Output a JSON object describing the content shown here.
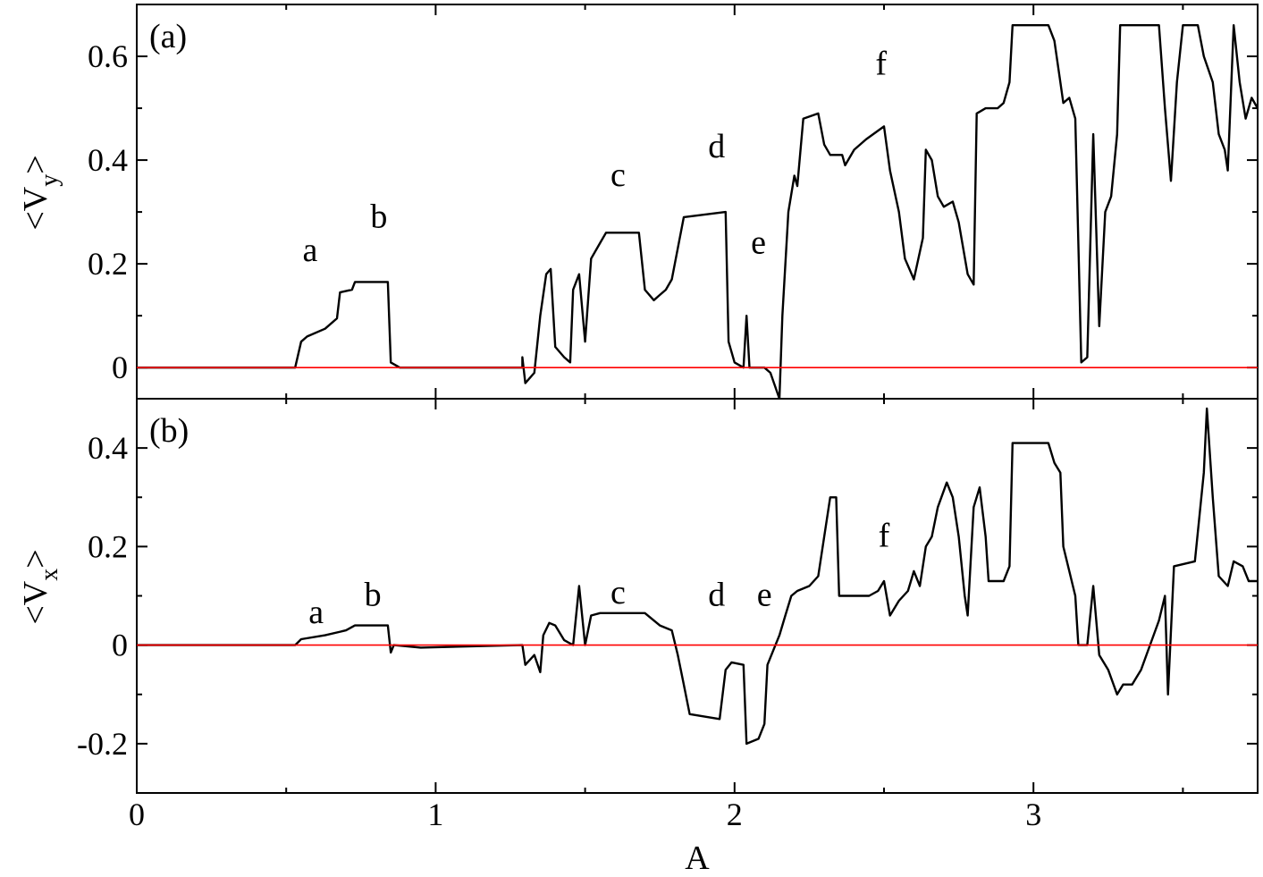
{
  "figure": {
    "xlabel": "A",
    "colors": {
      "primary_series": "#000000",
      "secondary_series": "#ff0000",
      "frame": "#000000"
    }
  },
  "chart_data": [
    {
      "type": "line",
      "panel_label": "(a)",
      "ylabel_main": "<V",
      "ylabel_sub": "y",
      "ylabel_close": ">",
      "xlabel": "",
      "xlim": [
        0,
        3.75
      ],
      "ylim": [
        -0.06,
        0.7
      ],
      "x_ticks": [
        0,
        1,
        2,
        3
      ],
      "x_tick_labels": [
        "",
        "",
        "",
        ""
      ],
      "y_ticks": [
        0,
        0.2,
        0.4,
        0.6
      ],
      "y_tick_labels": [
        "0",
        "0.2",
        "0.4",
        "0.6"
      ],
      "grid": false,
      "annotations": [
        {
          "text": "a",
          "x": 0.58,
          "y": 0.205
        },
        {
          "text": "b",
          "x": 0.81,
          "y": 0.27
        },
        {
          "text": "c",
          "x": 1.61,
          "y": 0.35
        },
        {
          "text": "d",
          "x": 1.94,
          "y": 0.405
        },
        {
          "text": "e",
          "x": 2.08,
          "y": 0.22
        },
        {
          "text": "f",
          "x": 2.49,
          "y": 0.565
        }
      ],
      "series": [
        {
          "color": "#000000",
          "points": [
            [
              0,
              0
            ],
            [
              0.53,
              0
            ],
            [
              0.55,
              0.05
            ],
            [
              0.57,
              0.06
            ],
            [
              0.63,
              0.075
            ],
            [
              0.67,
              0.095
            ],
            [
              0.68,
              0.145
            ],
            [
              0.72,
              0.15
            ],
            [
              0.73,
              0.165
            ],
            [
              0.84,
              0.165
            ],
            [
              0.85,
              0.01
            ],
            [
              0.88,
              0
            ],
            [
              1.29,
              0
            ],
            [
              1.29,
              0.02
            ],
            [
              1.3,
              -0.03
            ],
            [
              1.33,
              -0.01
            ],
            [
              1.35,
              0.1
            ],
            [
              1.37,
              0.18
            ],
            [
              1.385,
              0.19
            ],
            [
              1.4,
              0.04
            ],
            [
              1.43,
              0.02
            ],
            [
              1.45,
              0.01
            ],
            [
              1.46,
              0.15
            ],
            [
              1.48,
              0.18
            ],
            [
              1.5,
              0.05
            ],
            [
              1.52,
              0.21
            ],
            [
              1.55,
              0.24
            ],
            [
              1.57,
              0.26
            ],
            [
              1.68,
              0.26
            ],
            [
              1.7,
              0.15
            ],
            [
              1.73,
              0.13
            ],
            [
              1.75,
              0.14
            ],
            [
              1.77,
              0.15
            ],
            [
              1.79,
              0.17
            ],
            [
              1.81,
              0.23
            ],
            [
              1.83,
              0.29
            ],
            [
              1.97,
              0.3
            ],
            [
              1.98,
              0.05
            ],
            [
              2.0,
              0.01
            ],
            [
              2.03,
              0.0
            ],
            [
              2.04,
              0.1
            ],
            [
              2.05,
              0.0
            ],
            [
              2.1,
              0.0
            ],
            [
              2.12,
              -0.01
            ],
            [
              2.15,
              -0.06
            ],
            [
              2.16,
              0.1
            ],
            [
              2.18,
              0.3
            ],
            [
              2.2,
              0.37
            ],
            [
              2.21,
              0.35
            ],
            [
              2.23,
              0.48
            ],
            [
              2.28,
              0.49
            ],
            [
              2.3,
              0.43
            ],
            [
              2.32,
              0.41
            ],
            [
              2.36,
              0.41
            ],
            [
              2.37,
              0.39
            ],
            [
              2.4,
              0.42
            ],
            [
              2.44,
              0.44
            ],
            [
              2.5,
              0.465
            ],
            [
              2.52,
              0.38
            ],
            [
              2.55,
              0.3
            ],
            [
              2.57,
              0.21
            ],
            [
              2.6,
              0.17
            ],
            [
              2.63,
              0.25
            ],
            [
              2.64,
              0.42
            ],
            [
              2.66,
              0.4
            ],
            [
              2.68,
              0.33
            ],
            [
              2.7,
              0.31
            ],
            [
              2.73,
              0.32
            ],
            [
              2.75,
              0.28
            ],
            [
              2.78,
              0.18
            ],
            [
              2.8,
              0.16
            ],
            [
              2.81,
              0.49
            ],
            [
              2.84,
              0.5
            ],
            [
              2.88,
              0.5
            ],
            [
              2.9,
              0.51
            ],
            [
              2.92,
              0.55
            ],
            [
              2.93,
              0.66
            ],
            [
              3.05,
              0.66
            ],
            [
              3.07,
              0.63
            ],
            [
              3.09,
              0.55
            ],
            [
              3.1,
              0.51
            ],
            [
              3.12,
              0.52
            ],
            [
              3.14,
              0.48
            ],
            [
              3.16,
              0.01
            ],
            [
              3.18,
              0.02
            ],
            [
              3.2,
              0.45
            ],
            [
              3.22,
              0.08
            ],
            [
              3.24,
              0.3
            ],
            [
              3.26,
              0.33
            ],
            [
              3.28,
              0.45
            ],
            [
              3.29,
              0.66
            ],
            [
              3.42,
              0.66
            ],
            [
              3.44,
              0.5
            ],
            [
              3.46,
              0.36
            ],
            [
              3.48,
              0.55
            ],
            [
              3.5,
              0.66
            ],
            [
              3.55,
              0.66
            ],
            [
              3.57,
              0.6
            ],
            [
              3.6,
              0.55
            ],
            [
              3.62,
              0.45
            ],
            [
              3.64,
              0.42
            ],
            [
              3.65,
              0.38
            ],
            [
              3.67,
              0.66
            ],
            [
              3.69,
              0.55
            ],
            [
              3.71,
              0.48
            ],
            [
              3.73,
              0.52
            ],
            [
              3.75,
              0.5
            ]
          ]
        },
        {
          "color": "#ff0000",
          "points": [
            [
              0,
              0
            ],
            [
              3.75,
              0
            ]
          ]
        }
      ]
    },
    {
      "type": "line",
      "panel_label": "(b)",
      "ylabel_main": "<V",
      "ylabel_sub": "x",
      "ylabel_close": ">",
      "xlabel": "A",
      "xlim": [
        0,
        3.75
      ],
      "ylim": [
        -0.3,
        0.5
      ],
      "x_ticks": [
        0,
        1,
        2,
        3
      ],
      "x_tick_labels": [
        "0",
        "1",
        "2",
        "3"
      ],
      "y_ticks": [
        -0.2,
        0,
        0.2,
        0.4
      ],
      "y_tick_labels": [
        "-0.2",
        "0",
        "0.2",
        "0.4"
      ],
      "grid": false,
      "annotations": [
        {
          "text": "a",
          "x": 0.6,
          "y": 0.045
        },
        {
          "text": "b",
          "x": 0.79,
          "y": 0.08
        },
        {
          "text": "c",
          "x": 1.61,
          "y": 0.085
        },
        {
          "text": "d",
          "x": 1.94,
          "y": 0.08
        },
        {
          "text": "e",
          "x": 2.1,
          "y": 0.08
        },
        {
          "text": "f",
          "x": 2.5,
          "y": 0.2
        }
      ],
      "series": [
        {
          "color": "#000000",
          "points": [
            [
              0,
              0
            ],
            [
              0.53,
              0
            ],
            [
              0.55,
              0.012
            ],
            [
              0.63,
              0.02
            ],
            [
              0.7,
              0.03
            ],
            [
              0.73,
              0.04
            ],
            [
              0.84,
              0.04
            ],
            [
              0.85,
              -0.015
            ],
            [
              0.86,
              0.0
            ],
            [
              0.95,
              -0.005
            ],
            [
              1.29,
              0
            ],
            [
              1.3,
              -0.04
            ],
            [
              1.33,
              -0.02
            ],
            [
              1.35,
              -0.055
            ],
            [
              1.36,
              0.02
            ],
            [
              1.38,
              0.045
            ],
            [
              1.4,
              0.04
            ],
            [
              1.43,
              0.01
            ],
            [
              1.46,
              0.0
            ],
            [
              1.48,
              0.12
            ],
            [
              1.5,
              0.0
            ],
            [
              1.52,
              0.06
            ],
            [
              1.55,
              0.065
            ],
            [
              1.7,
              0.065
            ],
            [
              1.73,
              0.05
            ],
            [
              1.75,
              0.04
            ],
            [
              1.79,
              0.03
            ],
            [
              1.81,
              -0.02
            ],
            [
              1.83,
              -0.08
            ],
            [
              1.85,
              -0.14
            ],
            [
              1.95,
              -0.15
            ],
            [
              1.97,
              -0.05
            ],
            [
              1.99,
              -0.035
            ],
            [
              2.03,
              -0.04
            ],
            [
              2.04,
              -0.2
            ],
            [
              2.08,
              -0.19
            ],
            [
              2.1,
              -0.16
            ],
            [
              2.11,
              -0.04
            ],
            [
              2.13,
              -0.01
            ],
            [
              2.15,
              0.02
            ],
            [
              2.17,
              0.06
            ],
            [
              2.19,
              0.1
            ],
            [
              2.21,
              0.11
            ],
            [
              2.25,
              0.12
            ],
            [
              2.28,
              0.14
            ],
            [
              2.3,
              0.22
            ],
            [
              2.32,
              0.3
            ],
            [
              2.34,
              0.3
            ],
            [
              2.35,
              0.1
            ],
            [
              2.4,
              0.1
            ],
            [
              2.45,
              0.1
            ],
            [
              2.48,
              0.11
            ],
            [
              2.5,
              0.13
            ],
            [
              2.52,
              0.06
            ],
            [
              2.55,
              0.09
            ],
            [
              2.58,
              0.11
            ],
            [
              2.6,
              0.15
            ],
            [
              2.62,
              0.12
            ],
            [
              2.64,
              0.2
            ],
            [
              2.66,
              0.22
            ],
            [
              2.68,
              0.28
            ],
            [
              2.71,
              0.33
            ],
            [
              2.73,
              0.3
            ],
            [
              2.75,
              0.22
            ],
            [
              2.77,
              0.1
            ],
            [
              2.78,
              0.06
            ],
            [
              2.8,
              0.28
            ],
            [
              2.82,
              0.32
            ],
            [
              2.84,
              0.22
            ],
            [
              2.85,
              0.13
            ],
            [
              2.9,
              0.13
            ],
            [
              2.92,
              0.16
            ],
            [
              2.93,
              0.41
            ],
            [
              3.05,
              0.41
            ],
            [
              3.07,
              0.37
            ],
            [
              3.09,
              0.35
            ],
            [
              3.1,
              0.2
            ],
            [
              3.12,
              0.15
            ],
            [
              3.14,
              0.1
            ],
            [
              3.15,
              0.0
            ],
            [
              3.18,
              0.0
            ],
            [
              3.2,
              0.12
            ],
            [
              3.22,
              -0.02
            ],
            [
              3.25,
              -0.05
            ],
            [
              3.28,
              -0.1
            ],
            [
              3.3,
              -0.08
            ],
            [
              3.33,
              -0.08
            ],
            [
              3.36,
              -0.05
            ],
            [
              3.39,
              0.0
            ],
            [
              3.42,
              0.05
            ],
            [
              3.44,
              0.1
            ],
            [
              3.45,
              -0.1
            ],
            [
              3.47,
              0.16
            ],
            [
              3.54,
              0.17
            ],
            [
              3.57,
              0.35
            ],
            [
              3.58,
              0.48
            ],
            [
              3.6,
              0.3
            ],
            [
              3.62,
              0.14
            ],
            [
              3.65,
              0.12
            ],
            [
              3.67,
              0.17
            ],
            [
              3.7,
              0.16
            ],
            [
              3.72,
              0.13
            ],
            [
              3.75,
              0.13
            ]
          ]
        },
        {
          "color": "#ff0000",
          "points": [
            [
              0,
              0
            ],
            [
              3.75,
              0
            ]
          ]
        }
      ]
    }
  ]
}
